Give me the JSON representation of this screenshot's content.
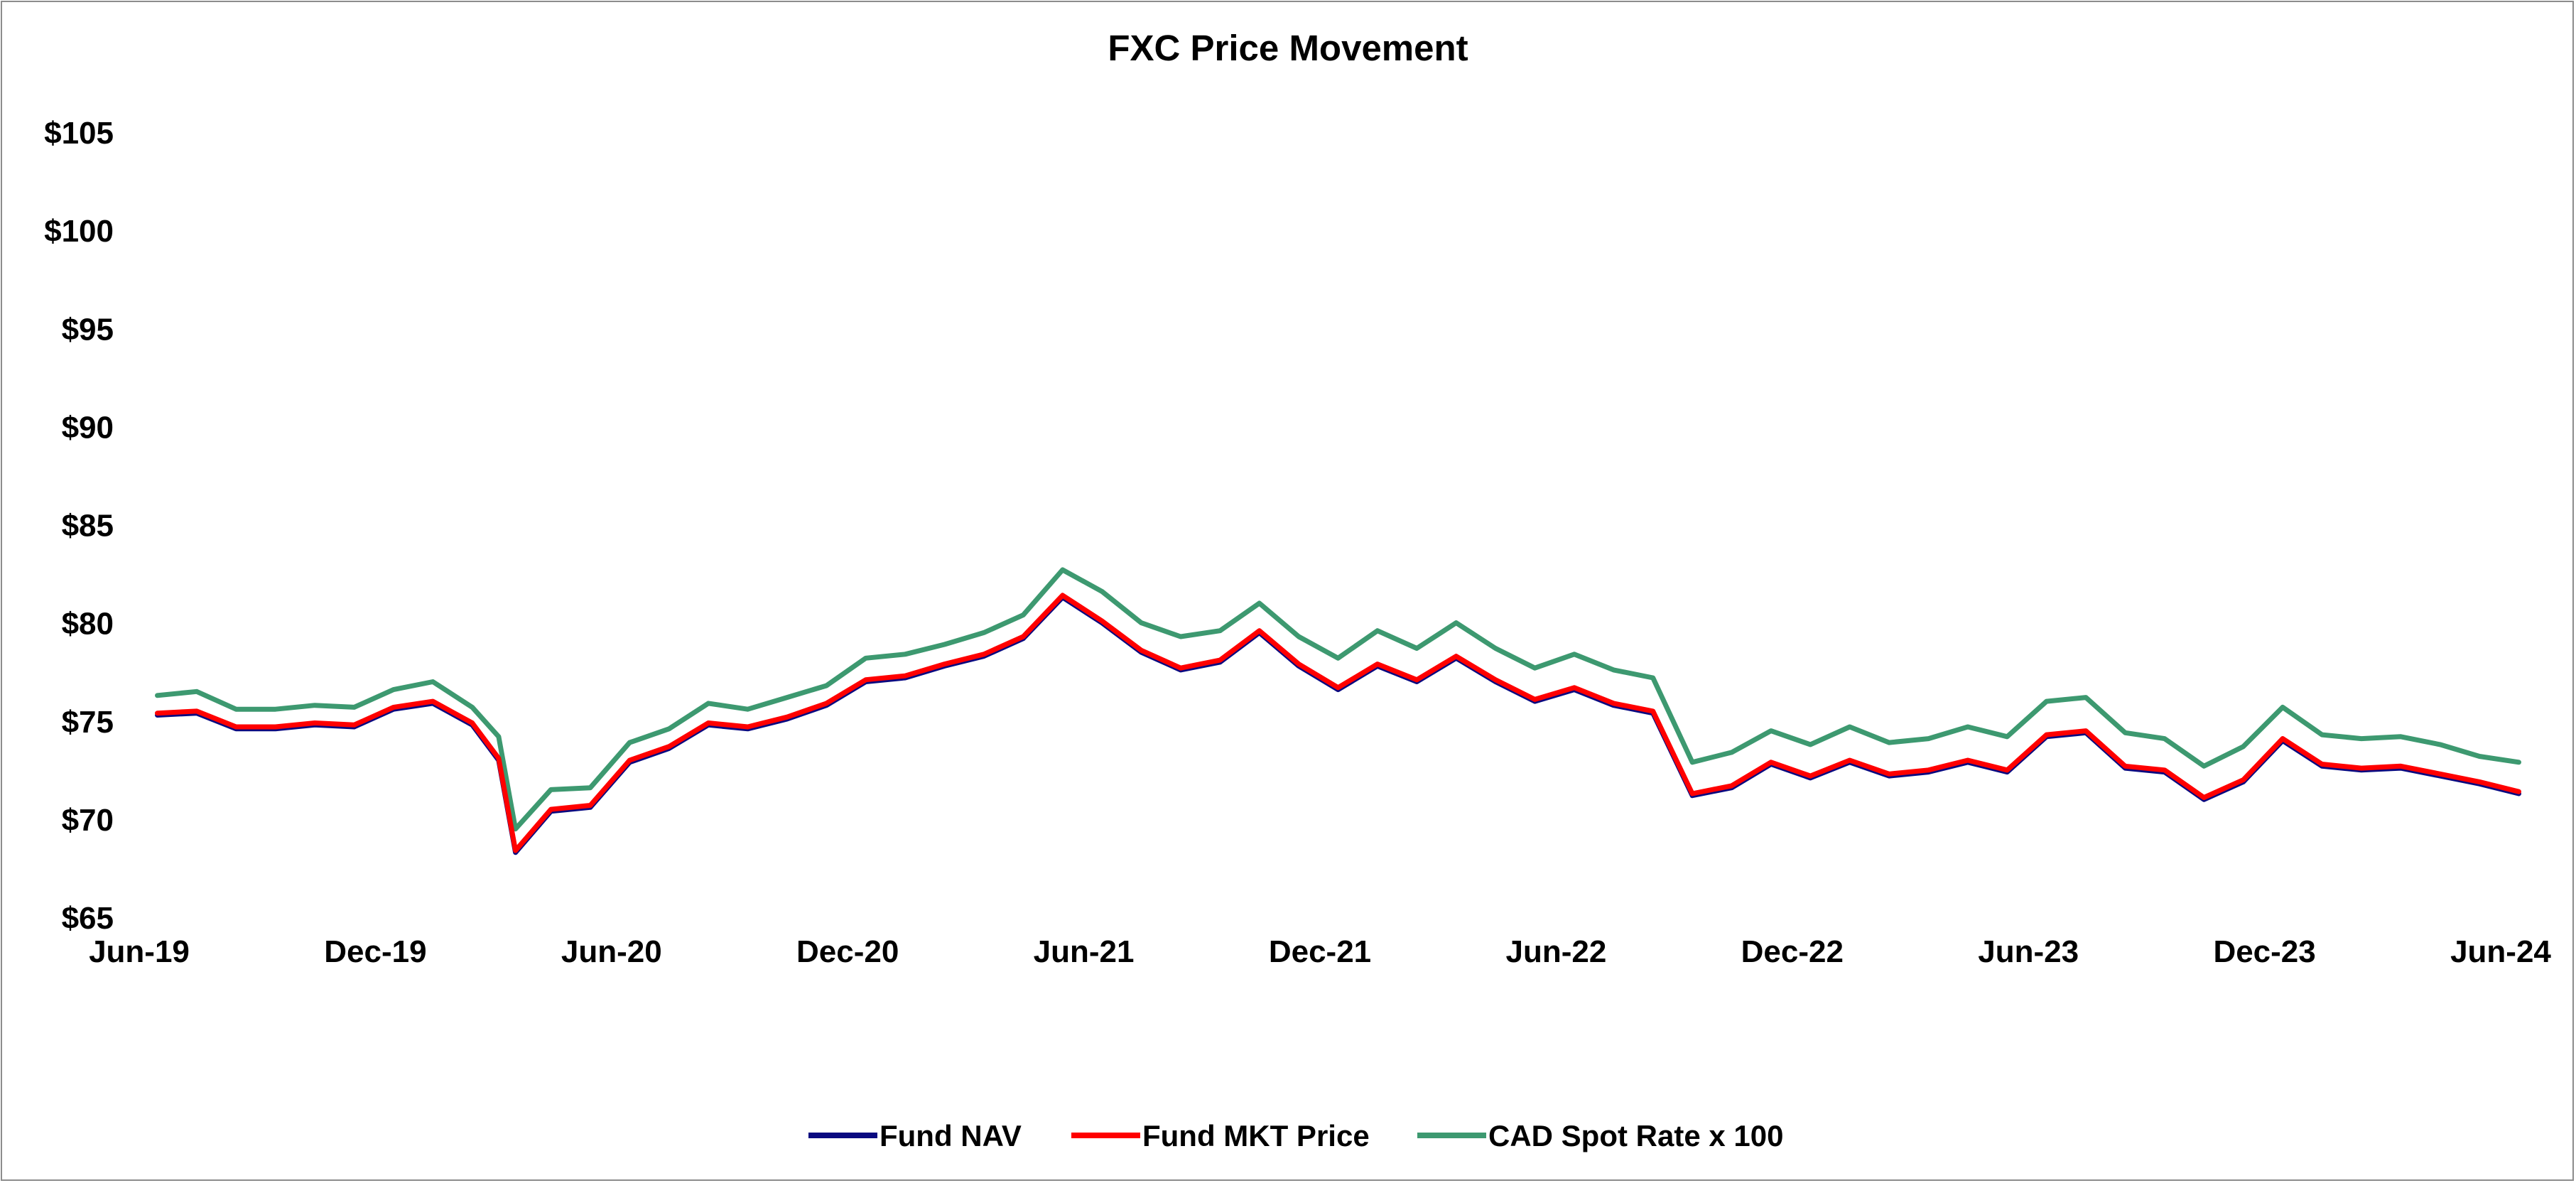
{
  "chart_data": {
    "type": "line",
    "title": "FXC Price Movement",
    "xlabel": "",
    "ylabel": "",
    "ylim": [
      65,
      105
    ],
    "x_ticks": [
      "Jun-19",
      "Dec-19",
      "Jun-20",
      "Dec-20",
      "Jun-21",
      "Dec-21",
      "Jun-22",
      "Dec-22",
      "Jun-23",
      "Dec-23",
      "Jun-24"
    ],
    "y_ticks": [
      {
        "value": 65,
        "label": "$65"
      },
      {
        "value": 70,
        "label": "$70"
      },
      {
        "value": 75,
        "label": "$75"
      },
      {
        "value": 80,
        "label": "$80"
      },
      {
        "value": 85,
        "label": "$85"
      },
      {
        "value": 90,
        "label": "$90"
      },
      {
        "value": 95,
        "label": "$95"
      },
      {
        "value": 100,
        "label": "$100"
      },
      {
        "value": 105,
        "label": "$105"
      }
    ],
    "grid": false,
    "legend_position": "bottom",
    "x": [
      "2019-06",
      "2019-07",
      "2019-08",
      "2019-09",
      "2019-10",
      "2019-11",
      "2019-12",
      "2020-01",
      "2020-02",
      "2020-03-05",
      "2020-03-18",
      "2020-04",
      "2020-05",
      "2020-06",
      "2020-07",
      "2020-08",
      "2020-09",
      "2020-10",
      "2020-11",
      "2020-12",
      "2021-01",
      "2021-02",
      "2021-03",
      "2021-04",
      "2021-05",
      "2021-06",
      "2021-07",
      "2021-08",
      "2021-09",
      "2021-10",
      "2021-11",
      "2021-12",
      "2022-01",
      "2022-02",
      "2022-03",
      "2022-04",
      "2022-05",
      "2022-06",
      "2022-07",
      "2022-08",
      "2022-09",
      "2022-10",
      "2022-11",
      "2022-12",
      "2023-01",
      "2023-02",
      "2023-03",
      "2023-04",
      "2023-05",
      "2023-06",
      "2023-07",
      "2023-08",
      "2023-09",
      "2023-10",
      "2023-11",
      "2023-12",
      "2024-01",
      "2024-02",
      "2024-03",
      "2024-04",
      "2024-05",
      "2024-06"
    ],
    "series": [
      {
        "name": "Fund NAV",
        "color": "#0a0a80",
        "values": [
          75.3,
          75.4,
          74.6,
          74.6,
          74.8,
          74.7,
          75.6,
          75.9,
          74.8,
          73.0,
          68.3,
          70.4,
          70.6,
          72.9,
          73.6,
          74.8,
          74.6,
          75.1,
          75.8,
          77.0,
          77.2,
          77.8,
          78.3,
          79.2,
          81.3,
          80.0,
          78.5,
          77.6,
          78.0,
          79.5,
          77.8,
          76.6,
          77.8,
          77.0,
          78.2,
          77.0,
          76.0,
          76.6,
          75.8,
          75.4,
          71.2,
          71.6,
          72.8,
          72.1,
          72.9,
          72.2,
          72.4,
          72.9,
          72.4,
          74.2,
          74.4,
          72.6,
          72.4,
          71.0,
          71.9,
          74.0,
          72.7,
          72.5,
          72.6,
          72.2,
          71.8,
          71.3
        ]
      },
      {
        "name": "Fund MKT Price",
        "color": "#ff0000",
        "values": [
          75.4,
          75.5,
          74.7,
          74.7,
          74.9,
          74.8,
          75.7,
          76.0,
          74.9,
          73.1,
          68.4,
          70.5,
          70.7,
          73.0,
          73.7,
          74.9,
          74.7,
          75.2,
          75.9,
          77.1,
          77.3,
          77.9,
          78.4,
          79.3,
          81.4,
          80.1,
          78.6,
          77.7,
          78.1,
          79.6,
          77.9,
          76.7,
          77.9,
          77.1,
          78.3,
          77.1,
          76.1,
          76.7,
          75.9,
          75.5,
          71.3,
          71.7,
          72.9,
          72.2,
          73.0,
          72.3,
          72.5,
          73.0,
          72.5,
          74.3,
          74.5,
          72.7,
          72.5,
          71.1,
          72.0,
          74.1,
          72.8,
          72.6,
          72.7,
          72.3,
          71.9,
          71.4
        ]
      },
      {
        "name": "CAD Spot Rate x 100",
        "color": "#3d9970",
        "values": [
          76.3,
          76.5,
          75.6,
          75.6,
          75.8,
          75.7,
          76.6,
          77.0,
          75.7,
          74.2,
          69.5,
          71.5,
          71.6,
          73.9,
          74.6,
          75.9,
          75.6,
          76.2,
          76.8,
          78.2,
          78.4,
          78.9,
          79.5,
          80.4,
          82.7,
          81.6,
          80.0,
          79.3,
          79.6,
          81.0,
          79.3,
          78.2,
          79.6,
          78.7,
          80.0,
          78.7,
          77.7,
          78.4,
          77.6,
          77.2,
          72.9,
          73.4,
          74.5,
          73.8,
          74.7,
          73.9,
          74.1,
          74.7,
          74.2,
          76.0,
          76.2,
          74.4,
          74.1,
          72.7,
          73.7,
          75.7,
          74.3,
          74.1,
          74.2,
          73.8,
          73.2,
          72.9
        ]
      }
    ]
  }
}
